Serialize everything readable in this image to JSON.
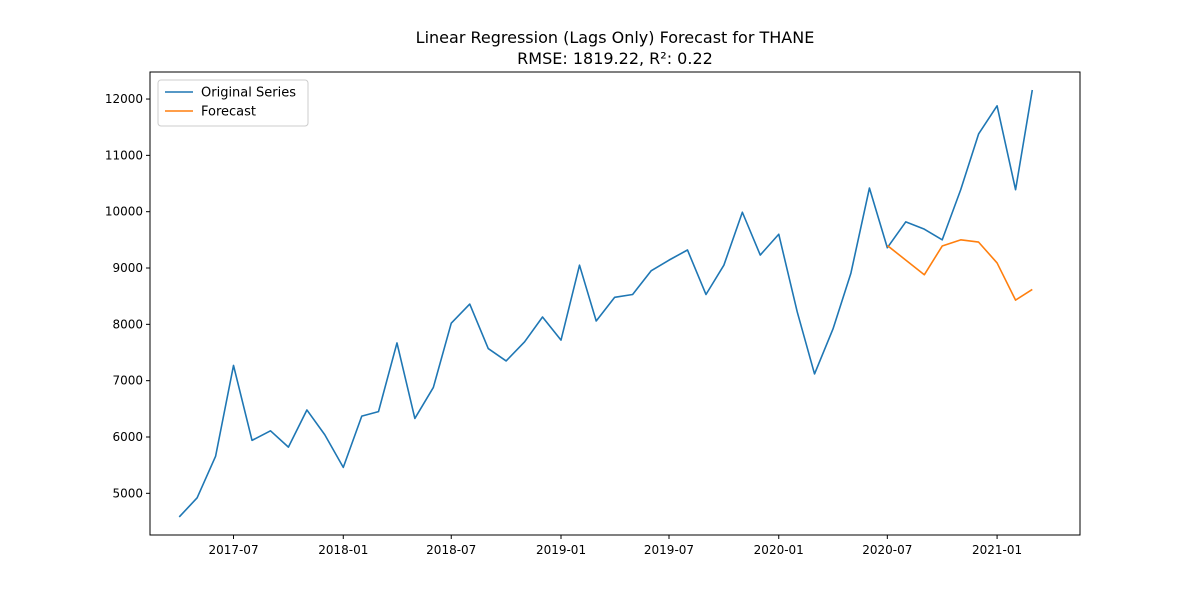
{
  "chart_data": {
    "type": "line",
    "title": "Linear Regression (Lags Only) Forecast for THANE",
    "subtitle": "RMSE: 1819.22, R²: 0.22",
    "xlabel": "",
    "ylabel": "",
    "xlim": [
      "2017-02-11",
      "2021-05-20"
    ],
    "ylim": [
      4260,
      12480
    ],
    "x_ticks": [
      "2017-07",
      "2018-01",
      "2018-07",
      "2019-01",
      "2019-07",
      "2020-01",
      "2020-07",
      "2021-01"
    ],
    "y_ticks": [
      5000,
      6000,
      7000,
      8000,
      9000,
      10000,
      11000,
      12000
    ],
    "grid": false,
    "legend_position": "upper left",
    "series": [
      {
        "name": "Original Series",
        "color": "#1f77b4",
        "x": [
          "2017-04",
          "2017-05",
          "2017-06",
          "2017-07",
          "2017-08",
          "2017-09",
          "2017-10",
          "2017-11",
          "2017-12",
          "2018-01",
          "2018-02",
          "2018-03",
          "2018-04",
          "2018-05",
          "2018-06",
          "2018-07",
          "2018-08",
          "2018-09",
          "2018-10",
          "2018-11",
          "2018-12",
          "2019-01",
          "2019-02",
          "2019-03",
          "2019-04",
          "2019-05",
          "2019-06",
          "2019-07",
          "2019-08",
          "2019-09",
          "2019-10",
          "2019-11",
          "2019-12",
          "2020-01",
          "2020-02",
          "2020-03",
          "2020-04",
          "2020-05",
          "2020-06",
          "2020-07",
          "2020-08",
          "2020-09",
          "2020-10",
          "2020-11",
          "2020-12",
          "2021-01",
          "2021-02",
          "2021-03"
        ],
        "values": [
          4580,
          4920,
          5660,
          7270,
          5940,
          6110,
          5820,
          6480,
          6040,
          5460,
          6370,
          6450,
          7670,
          6330,
          6880,
          8020,
          8360,
          7570,
          7350,
          7690,
          8130,
          7720,
          9050,
          8060,
          8480,
          8530,
          8950,
          9140,
          9320,
          8530,
          9050,
          9990,
          9230,
          9600,
          8220,
          7120,
          7920,
          8910,
          10420,
          9360,
          9820,
          9690,
          9500,
          10390,
          11380,
          11880,
          10390,
          12160
        ]
      },
      {
        "name": "Forecast",
        "color": "#ff7f0e",
        "x": [
          "2020-07",
          "2020-08",
          "2020-09",
          "2020-10",
          "2020-11",
          "2020-12",
          "2021-01",
          "2021-02",
          "2021-03"
        ],
        "values": [
          9400,
          9140,
          8880,
          9390,
          9500,
          9460,
          9090,
          8430,
          8620
        ]
      }
    ]
  }
}
